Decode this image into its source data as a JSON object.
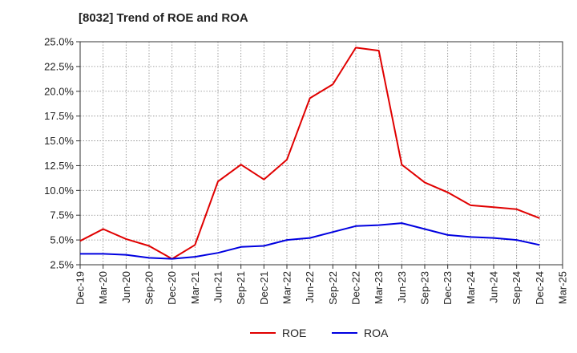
{
  "chart_data": {
    "type": "line",
    "title": "[8032]  Trend of ROE and ROA",
    "xlabel": "",
    "ylabel": "",
    "categories": [
      "Dec-19",
      "Mar-20",
      "Jun-20",
      "Sep-20",
      "Dec-20",
      "Mar-21",
      "Jun-21",
      "Sep-21",
      "Dec-21",
      "Mar-22",
      "Jun-22",
      "Sep-22",
      "Dec-22",
      "Mar-23",
      "Jun-23",
      "Sep-23",
      "Dec-23",
      "Mar-24",
      "Jun-24",
      "Sep-24",
      "Dec-24",
      "Mar-25"
    ],
    "ylim": [
      2.5,
      25.0
    ],
    "yticks": [
      "2.5%",
      "5.0%",
      "7.5%",
      "10.0%",
      "12.5%",
      "15.0%",
      "17.5%",
      "20.0%",
      "22.5%",
      "25.0%"
    ],
    "grid": true,
    "legend_position": "bottom-center",
    "series": [
      {
        "name": "ROE",
        "color": "#e00000",
        "values": [
          4.9,
          6.1,
          5.1,
          4.4,
          3.1,
          4.5,
          10.9,
          12.6,
          11.1,
          13.1,
          19.3,
          20.7,
          24.4,
          24.1,
          12.6,
          10.8,
          9.8,
          8.5,
          8.3,
          8.1,
          7.2,
          null
        ]
      },
      {
        "name": "ROA",
        "color": "#0000e0",
        "values": [
          3.6,
          3.6,
          3.5,
          3.2,
          3.1,
          3.3,
          3.7,
          4.3,
          4.4,
          5.0,
          5.2,
          5.8,
          6.4,
          6.5,
          6.7,
          6.1,
          5.5,
          5.3,
          5.2,
          5.0,
          4.5,
          null
        ]
      }
    ]
  }
}
